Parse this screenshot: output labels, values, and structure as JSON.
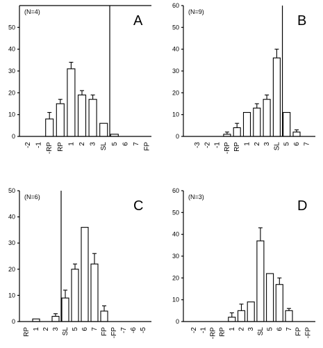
{
  "chart_data": [
    {
      "type": "bar",
      "panel_label": "A",
      "annotation": "(N=4)",
      "categories": [
        "-2",
        "-1",
        "-RP",
        "RP",
        "1",
        "2",
        "3",
        "SL",
        "5",
        "6",
        "7",
        "FP"
      ],
      "ylim": [
        0,
        60
      ],
      "yticks": [
        0,
        10,
        20,
        30,
        40,
        50
      ],
      "values": [
        0,
        0,
        8,
        15,
        31,
        19,
        17,
        6,
        1,
        0,
        0,
        0
      ],
      "errors": [
        0,
        0,
        3,
        2,
        3,
        2,
        2,
        0,
        0,
        0,
        0,
        0
      ],
      "divider_after": "SL"
    },
    {
      "type": "bar",
      "panel_label": "B",
      "annotation": "(N=9)",
      "categories": [
        "-3",
        "-2",
        "-1",
        "-RP",
        "RP",
        "1",
        "2",
        "3",
        "SL",
        "5",
        "6",
        "7"
      ],
      "ylim": [
        0,
        60
      ],
      "yticks": [
        0,
        10,
        20,
        30,
        40,
        50,
        60
      ],
      "values": [
        0,
        0,
        0,
        1,
        4,
        11,
        13,
        17,
        36,
        11,
        2,
        0
      ],
      "errors": [
        0,
        0,
        0,
        1,
        2,
        0,
        2,
        2,
        4,
        0,
        1,
        0
      ],
      "divider_after": "SL"
    },
    {
      "type": "bar",
      "panel_label": "C",
      "annotation": "(N=6)",
      "categories": [
        "RP",
        "1",
        "2",
        "3",
        "SL",
        "5",
        "6",
        "7",
        "FP",
        "-FP",
        "-7",
        "-6",
        "-5"
      ],
      "ylim": [
        0,
        50
      ],
      "yticks": [
        0,
        10,
        20,
        30,
        40,
        50
      ],
      "values": [
        0,
        1,
        0,
        2,
        9,
        20,
        36,
        22,
        4,
        0,
        0,
        0,
        0
      ],
      "errors": [
        0,
        0,
        0,
        1,
        3,
        2,
        0,
        4,
        2,
        0,
        0,
        0,
        0
      ],
      "divider_after": "3"
    },
    {
      "type": "bar",
      "panel_label": "D",
      "annotation": "(N=3)",
      "categories": [
        "-2",
        "-1",
        "-RP",
        "RP",
        "1",
        "2",
        "3",
        "SL",
        "5",
        "6",
        "7",
        "FP",
        "-FP"
      ],
      "ylim": [
        0,
        60
      ],
      "yticks": [
        0,
        10,
        20,
        30,
        40,
        50,
        60
      ],
      "values": [
        0,
        0,
        0,
        0,
        2,
        5,
        9,
        37,
        22,
        17,
        5,
        0,
        0
      ],
      "errors": [
        0,
        0,
        0,
        0,
        2,
        3,
        0,
        6,
        0,
        3,
        1,
        0,
        0
      ],
      "divider_after": null
    }
  ]
}
